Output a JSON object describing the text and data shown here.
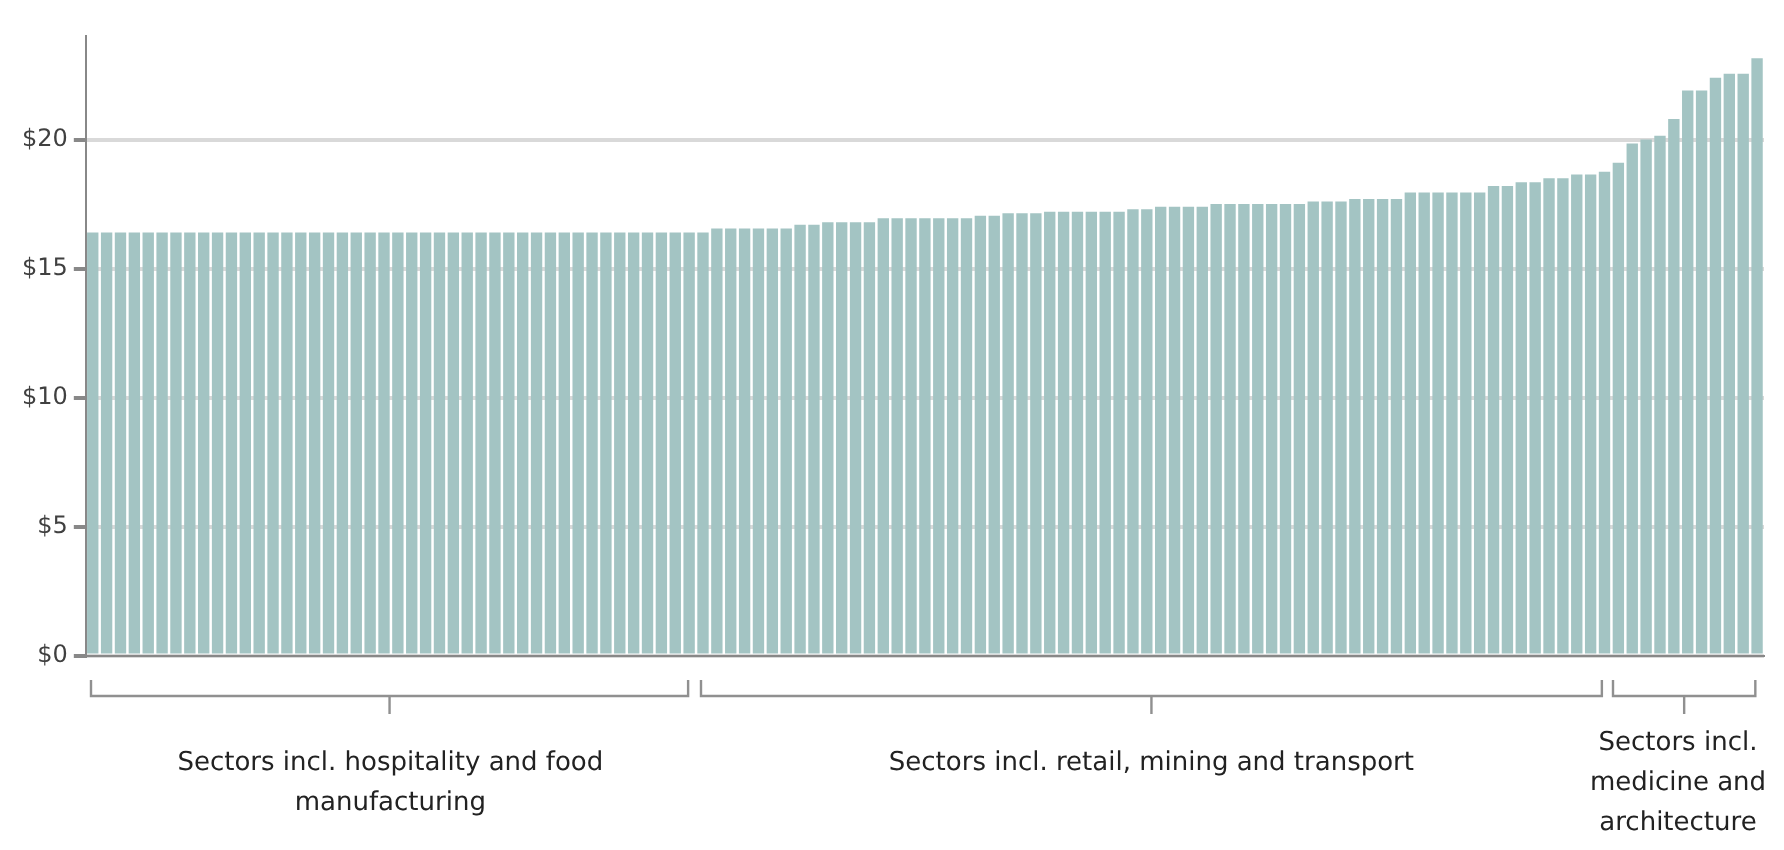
{
  "chart_data": {
    "type": "bar",
    "categories": [
      null,
      null,
      null,
      null,
      null,
      null,
      null,
      null,
      null,
      null,
      null,
      null,
      null,
      null,
      null,
      null,
      null,
      null,
      null,
      null,
      null,
      null,
      null,
      null,
      null,
      null,
      null,
      null,
      null,
      null,
      null,
      null,
      null,
      null,
      null,
      null,
      null,
      null,
      null,
      null,
      null,
      null,
      null,
      null,
      null,
      null,
      null,
      null,
      null,
      null,
      null,
      null,
      null,
      null,
      null,
      null,
      null,
      null,
      null,
      null,
      null,
      null,
      null,
      null,
      null,
      null,
      null,
      null,
      null,
      null,
      null,
      null,
      null,
      null,
      null,
      null,
      null,
      null,
      null,
      null,
      null,
      null,
      null,
      null,
      null,
      null,
      null,
      null,
      null,
      null,
      null,
      null,
      null,
      null,
      null,
      null,
      null,
      null,
      null,
      null,
      null,
      null,
      null,
      null,
      null,
      null,
      null,
      null,
      null,
      null,
      null,
      null,
      null,
      null,
      null,
      null,
      null,
      null,
      null,
      null,
      null
    ],
    "values": [
      16.4,
      16.4,
      16.4,
      16.4,
      16.4,
      16.4,
      16.4,
      16.4,
      16.4,
      16.4,
      16.4,
      16.4,
      16.4,
      16.4,
      16.4,
      16.4,
      16.4,
      16.4,
      16.4,
      16.4,
      16.4,
      16.4,
      16.4,
      16.4,
      16.4,
      16.4,
      16.4,
      16.4,
      16.4,
      16.4,
      16.4,
      16.4,
      16.4,
      16.4,
      16.4,
      16.4,
      16.4,
      16.4,
      16.4,
      16.4,
      16.4,
      16.4,
      16.4,
      16.4,
      16.4,
      16.55,
      16.55,
      16.55,
      16.55,
      16.55,
      16.55,
      16.7,
      16.7,
      16.8,
      16.8,
      16.8,
      16.8,
      16.95,
      16.95,
      16.95,
      16.95,
      16.95,
      16.95,
      16.95,
      17.05,
      17.05,
      17.15,
      17.15,
      17.15,
      17.2,
      17.2,
      17.2,
      17.2,
      17.2,
      17.2,
      17.3,
      17.3,
      17.4,
      17.4,
      17.4,
      17.4,
      17.5,
      17.5,
      17.5,
      17.5,
      17.5,
      17.5,
      17.5,
      17.6,
      17.6,
      17.6,
      17.7,
      17.7,
      17.7,
      17.7,
      17.95,
      17.95,
      17.95,
      17.95,
      17.95,
      17.95,
      18.2,
      18.2,
      18.35,
      18.35,
      18.5,
      18.5,
      18.65,
      18.65,
      18.75,
      19.1,
      19.85,
      20.0,
      20.15,
      20.8,
      21.9,
      21.9,
      22.4,
      22.55,
      22.55,
      23.15
    ],
    "color": "#a3c4c3",
    "ylim": [
      0,
      24
    ],
    "yticks": [
      {
        "value": 0,
        "label": "$0"
      },
      {
        "value": 5,
        "label": "$5"
      },
      {
        "value": 10,
        "label": "$10"
      },
      {
        "value": 15,
        "label": "$15"
      },
      {
        "value": 20,
        "label": "$20"
      }
    ],
    "grid": "y",
    "legend": false,
    "annotations": [
      "Sectors incl. hospitality and food manufacturing",
      "Sectors incl. retail, mining and transport",
      "Sectors incl. medicine and architecture"
    ]
  }
}
